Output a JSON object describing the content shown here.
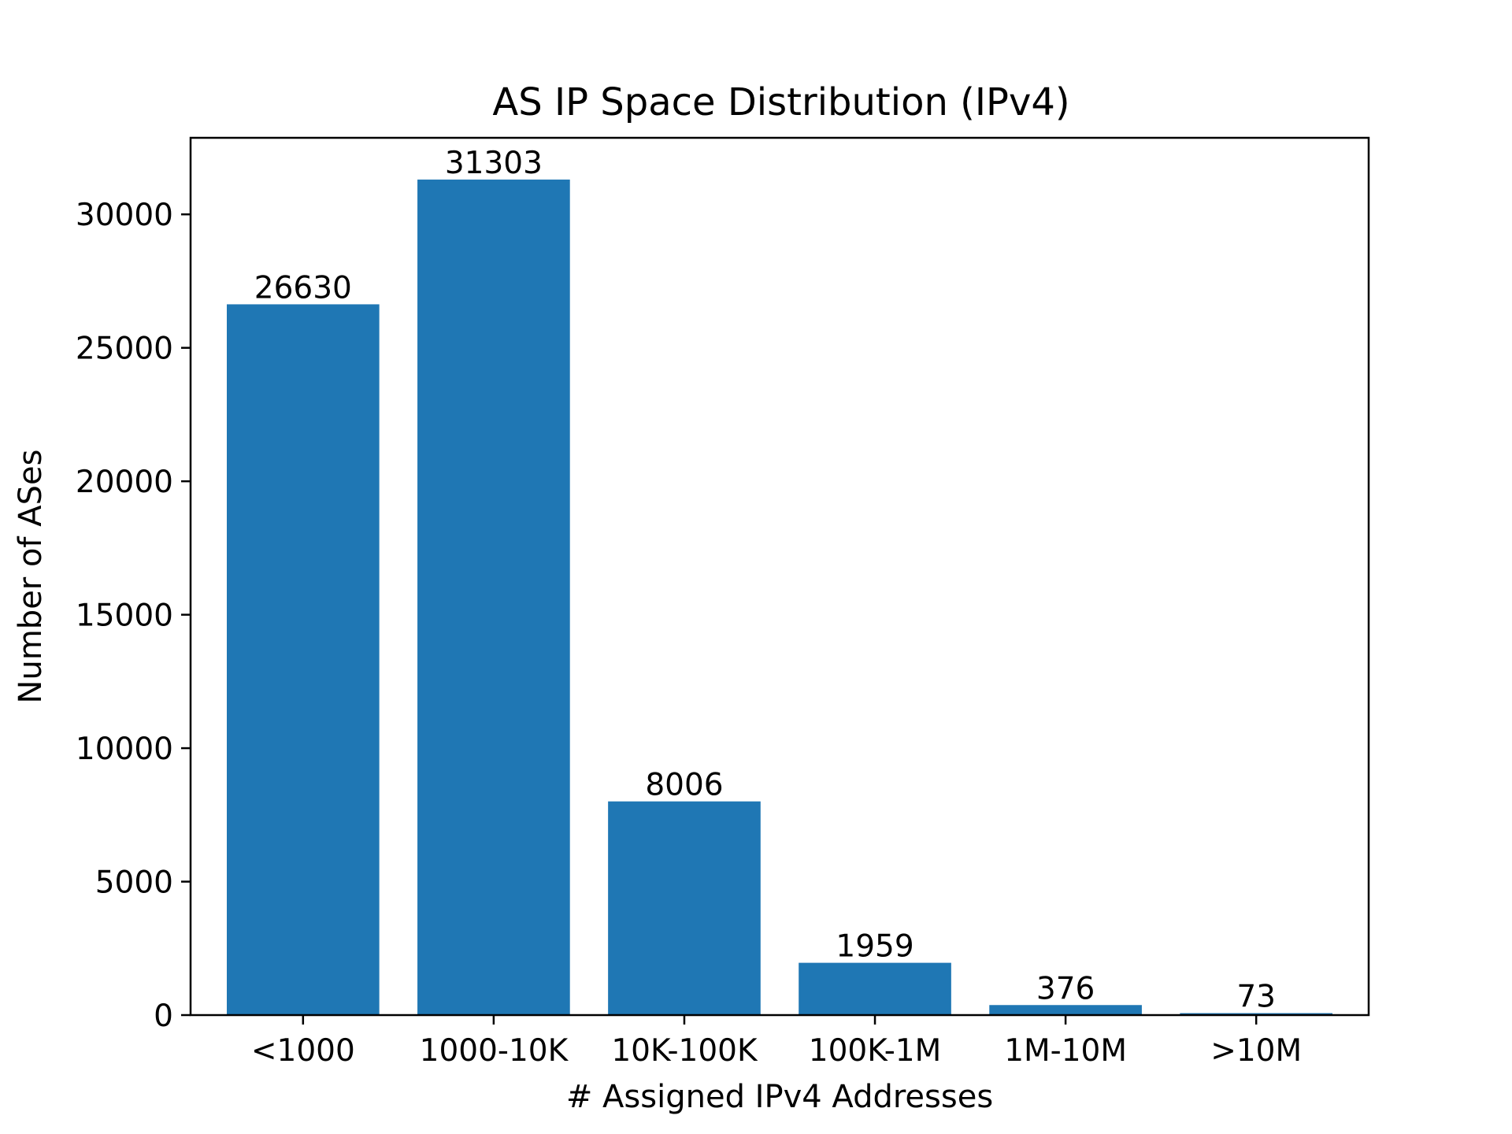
{
  "chart_data": {
    "type": "bar",
    "title": "AS IP Space Distribution (IPv4)",
    "xlabel": "# Assigned IPv4 Addresses",
    "ylabel": "Number of ASes",
    "categories": [
      "<1000",
      "1000-10K",
      "10K-100K",
      "100K-1M",
      "1M-10M",
      ">10M"
    ],
    "values": [
      26630,
      31303,
      8006,
      1959,
      376,
      73
    ],
    "data_labels": [
      "26630",
      "31303",
      "8006",
      "1959",
      "376",
      "73"
    ],
    "ylim": [
      0,
      32868
    ],
    "yticks": [
      0,
      5000,
      10000,
      15000,
      20000,
      25000,
      30000
    ],
    "ytick_labels": [
      "0",
      "5000",
      "10000",
      "15000",
      "20000",
      "25000",
      "30000"
    ],
    "grid": false,
    "bar_color": "#1f77b4"
  }
}
